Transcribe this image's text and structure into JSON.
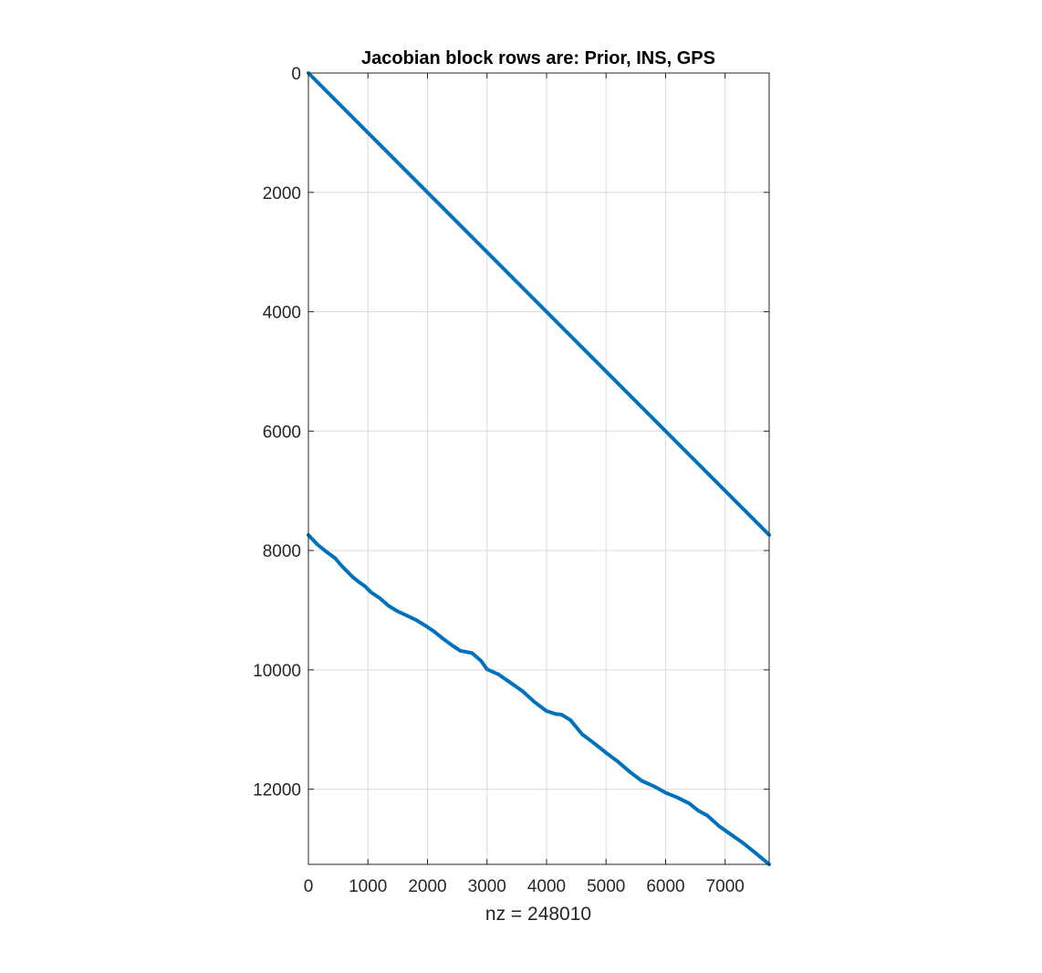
{
  "chart_data": {
    "type": "scatter",
    "title": "Jacobian block rows are: Prior, INS, GPS",
    "xlabel": "nz = 248010",
    "ylabel": "",
    "xlim": [
      0,
      7740
    ],
    "ylim": [
      0,
      13260
    ],
    "y_reversed": true,
    "grid": true,
    "x_ticks": [
      0,
      1000,
      2000,
      3000,
      4000,
      5000,
      6000,
      7000
    ],
    "y_ticks": [
      0,
      2000,
      4000,
      6000,
      8000,
      10000,
      12000
    ],
    "marker_color": "#0072BD",
    "series": [
      {
        "points": [
          [
            0,
            0
          ],
          [
            7740,
            7740
          ]
        ]
      },
      {
        "points": [
          [
            0,
            7740
          ],
          [
            150,
            7900
          ],
          [
            300,
            8020
          ],
          [
            450,
            8130
          ],
          [
            550,
            8250
          ],
          [
            650,
            8350
          ],
          [
            750,
            8450
          ],
          [
            850,
            8530
          ],
          [
            950,
            8600
          ],
          [
            1050,
            8700
          ],
          [
            1200,
            8800
          ],
          [
            1350,
            8930
          ],
          [
            1500,
            9020
          ],
          [
            1650,
            9090
          ],
          [
            1800,
            9160
          ],
          [
            1950,
            9250
          ],
          [
            2100,
            9350
          ],
          [
            2250,
            9470
          ],
          [
            2400,
            9580
          ],
          [
            2550,
            9680
          ],
          [
            2750,
            9720
          ],
          [
            2900,
            9850
          ],
          [
            3000,
            9990
          ],
          [
            3200,
            10080
          ],
          [
            3400,
            10220
          ],
          [
            3600,
            10360
          ],
          [
            3800,
            10540
          ],
          [
            4000,
            10690
          ],
          [
            4150,
            10740
          ],
          [
            4250,
            10750
          ],
          [
            4400,
            10840
          ],
          [
            4600,
            11080
          ],
          [
            4800,
            11230
          ],
          [
            5000,
            11390
          ],
          [
            5200,
            11540
          ],
          [
            5400,
            11710
          ],
          [
            5600,
            11860
          ],
          [
            5800,
            11950
          ],
          [
            6000,
            12060
          ],
          [
            6200,
            12140
          ],
          [
            6400,
            12240
          ],
          [
            6550,
            12360
          ],
          [
            6700,
            12440
          ],
          [
            6900,
            12620
          ],
          [
            7100,
            12760
          ],
          [
            7300,
            12900
          ],
          [
            7500,
            13060
          ],
          [
            7740,
            13260
          ]
        ]
      }
    ]
  }
}
